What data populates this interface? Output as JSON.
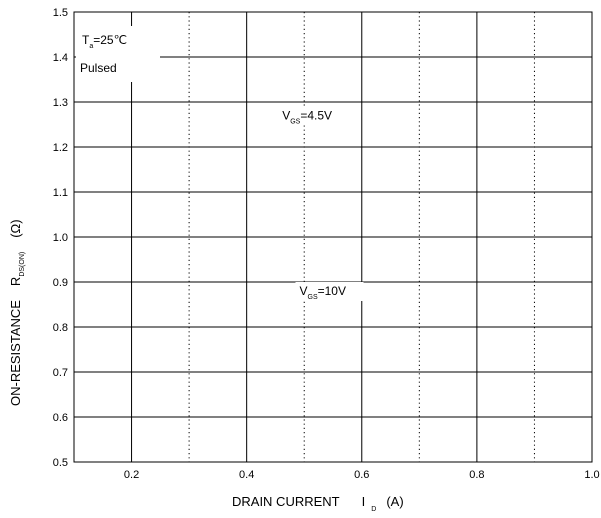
{
  "chart_data": {
    "type": "line",
    "xlabel": "DRAIN CURRENT",
    "xlabel_symbol": "I",
    "xlabel_subscript": "D",
    "xlabel_unit": "(A)",
    "ylabel": "ON-RESISTANCE",
    "ylabel_symbol": "R",
    "ylabel_subscript": "DS(ON)",
    "ylabel_unit": "(Ω)",
    "xlim": [
      0.1,
      1.0
    ],
    "ylim": [
      0.5,
      1.5
    ],
    "x_ticks": [
      {
        "value": 0.2,
        "label": "0.2"
      },
      {
        "value": 0.4,
        "label": "0.4"
      },
      {
        "value": 0.6,
        "label": "0.6"
      },
      {
        "value": 0.8,
        "label": "0.8"
      },
      {
        "value": 1.0,
        "label": "1.0"
      }
    ],
    "x_minor_ticks": [
      0.3,
      0.5,
      0.7,
      0.9
    ],
    "y_ticks": [
      {
        "value": 0.5,
        "label": "0.5"
      },
      {
        "value": 0.6,
        "label": "0.6"
      },
      {
        "value": 0.7,
        "label": "0.7"
      },
      {
        "value": 0.8,
        "label": "0.8"
      },
      {
        "value": 0.9,
        "label": "0.9"
      },
      {
        "value": 1.0,
        "label": "1.0"
      },
      {
        "value": 1.1,
        "label": "1.1"
      },
      {
        "value": 1.2,
        "label": "1.2"
      },
      {
        "value": 1.3,
        "label": "1.3"
      },
      {
        "value": 1.4,
        "label": "1.4"
      },
      {
        "value": 1.5,
        "label": "1.5"
      }
    ],
    "grid": true,
    "conditions": {
      "temp_symbol": "T",
      "temp_subscript": "a",
      "temp_value": "=25℃",
      "mode": "Pulsed"
    },
    "annotations": [
      {
        "symbol": "V",
        "subscript": "GS",
        "text": "=4.5V",
        "x": 0.5,
        "y": 1.27
      },
      {
        "symbol": "V",
        "subscript": "GS",
        "text": "=10V",
        "x": 0.53,
        "y": 0.88
      }
    ],
    "series": []
  }
}
